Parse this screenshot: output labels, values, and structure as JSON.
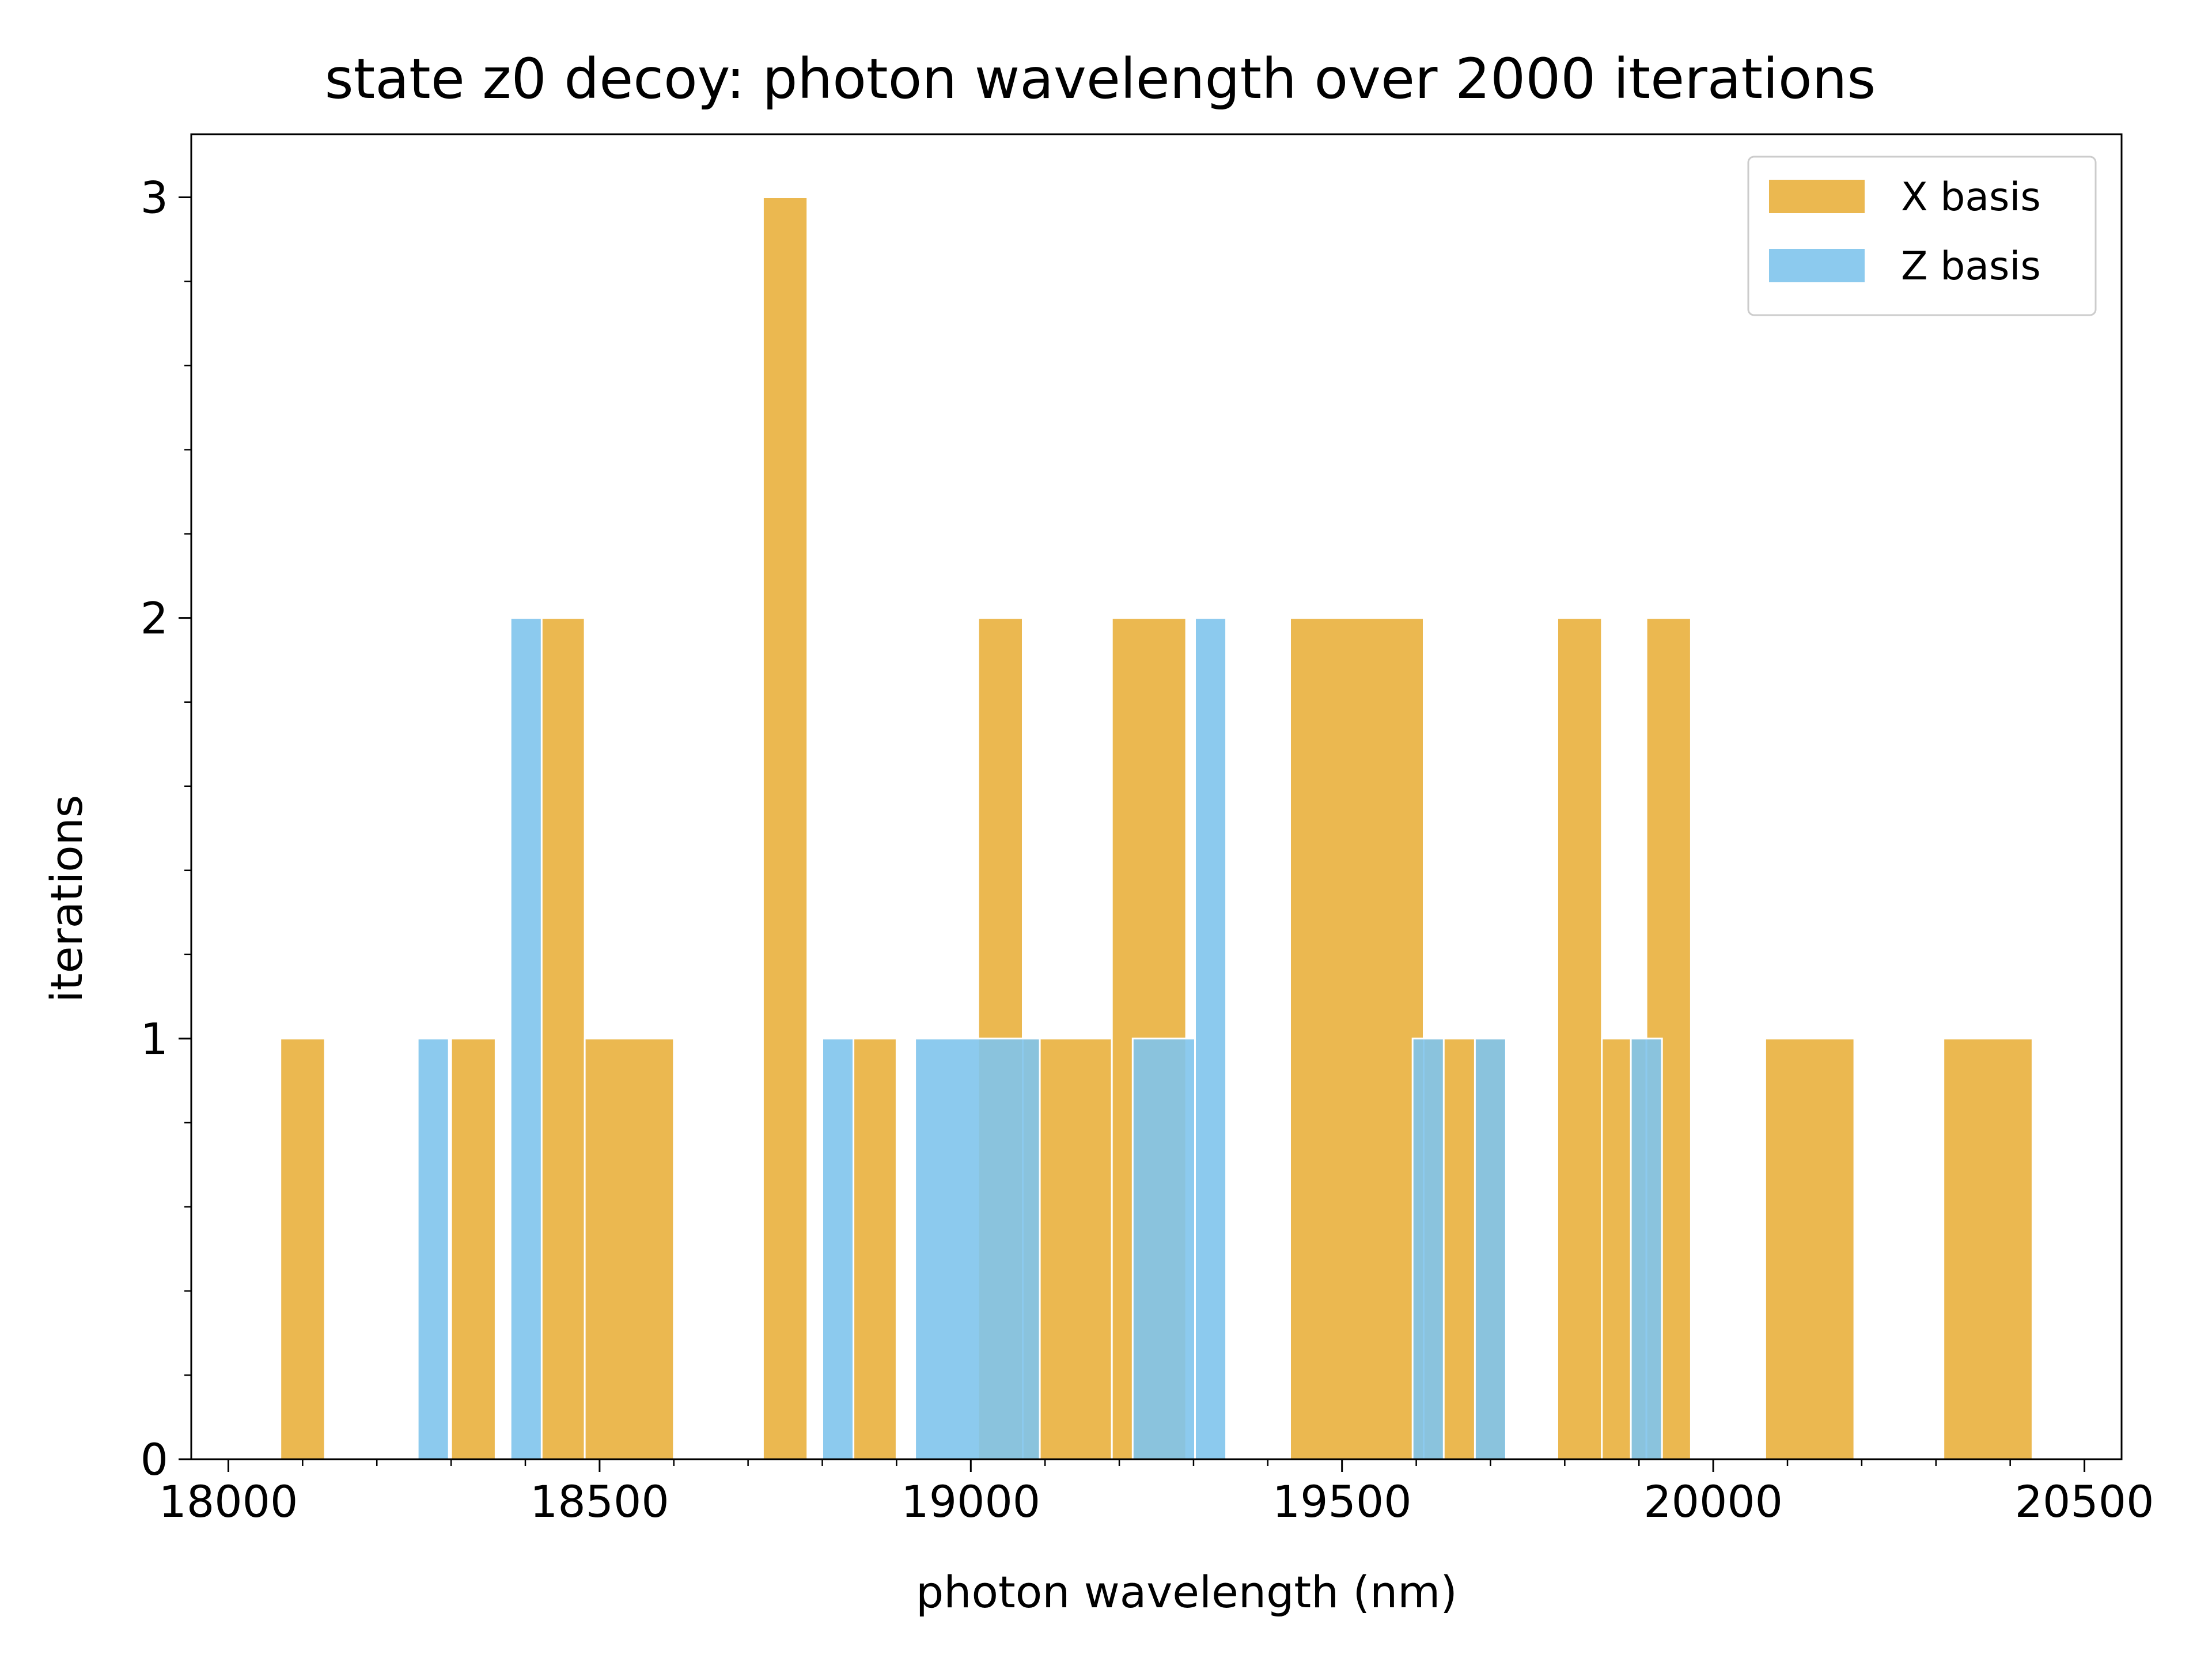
{
  "chart_data": {
    "type": "bar",
    "title": "state z0 decoy: photon wavelength over 2000 iterations",
    "xlabel": "photon wavelength (nm)",
    "ylabel": "iterations",
    "xlim": [
      17950,
      20550
    ],
    "ylim": [
      0,
      3.15
    ],
    "xticks": [
      18000,
      18500,
      19000,
      19500,
      20000,
      20500
    ],
    "yticks": [
      0,
      1,
      2,
      3
    ],
    "x_minor_step": 100,
    "y_minor_step": 0.2,
    "grid": false,
    "legend_position": "top-right",
    "series": [
      {
        "name": "X basis",
        "color": "#e9b03d",
        "alpha": 0.9,
        "bins": [
          {
            "x0": 18070,
            "x1": 18130,
            "count": 1
          },
          {
            "x0": 18300,
            "x1": 18360,
            "count": 1
          },
          {
            "x0": 18420,
            "x1": 18480,
            "count": 2
          },
          {
            "x0": 18480,
            "x1": 18600,
            "count": 1
          },
          {
            "x0": 18720,
            "x1": 18780,
            "count": 3
          },
          {
            "x0": 18840,
            "x1": 18900,
            "count": 1
          },
          {
            "x0": 19010,
            "x1": 19070,
            "count": 2
          },
          {
            "x0": 19070,
            "x1": 19190,
            "count": 1
          },
          {
            "x0": 19190,
            "x1": 19290,
            "count": 2
          },
          {
            "x0": 19430,
            "x1": 19610,
            "count": 2
          },
          {
            "x0": 19610,
            "x1": 19720,
            "count": 1
          },
          {
            "x0": 19790,
            "x1": 19850,
            "count": 2
          },
          {
            "x0": 19850,
            "x1": 19910,
            "count": 1
          },
          {
            "x0": 19910,
            "x1": 19970,
            "count": 2
          },
          {
            "x0": 20070,
            "x1": 20190,
            "count": 1
          },
          {
            "x0": 20310,
            "x1": 20430,
            "count": 1
          }
        ]
      },
      {
        "name": "Z basis",
        "color": "#7fc4ec",
        "alpha": 0.9,
        "bins": [
          {
            "x0": 18255,
            "x1": 18297,
            "count": 1
          },
          {
            "x0": 18380,
            "x1": 18422,
            "count": 2
          },
          {
            "x0": 18800,
            "x1": 18842,
            "count": 1
          },
          {
            "x0": 18925,
            "x1": 19093,
            "count": 1
          },
          {
            "x0": 19218,
            "x1": 19302,
            "count": 1
          },
          {
            "x0": 19302,
            "x1": 19344,
            "count": 2
          },
          {
            "x0": 19595,
            "x1": 19637,
            "count": 1
          },
          {
            "x0": 19679,
            "x1": 19721,
            "count": 1
          },
          {
            "x0": 19889,
            "x1": 19931,
            "count": 1
          }
        ]
      }
    ]
  }
}
